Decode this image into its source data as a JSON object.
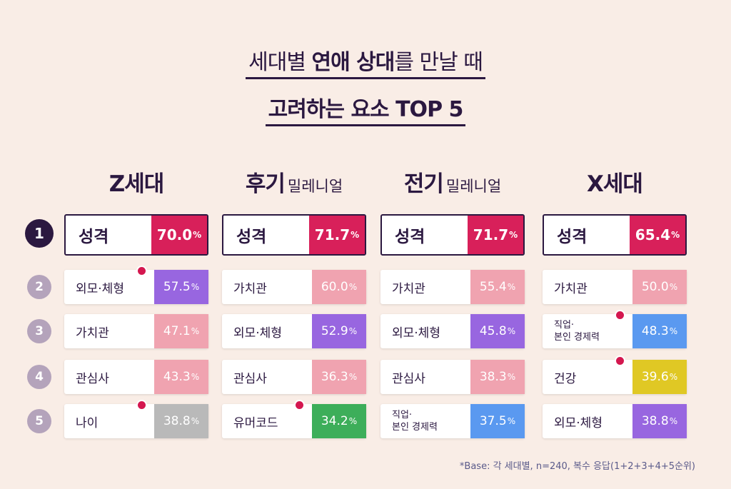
{
  "title": {
    "line1_a": "세대별 ",
    "line1_b": "연애 상대",
    "line1_c": "를 만날 때",
    "line2": "고려하는 요소 TOP 5"
  },
  "columns": [
    {
      "main": "Z세대",
      "sub": ""
    },
    {
      "main": "후기",
      "sub": "밀레니얼"
    },
    {
      "main": "전기",
      "sub": "밀레니얼"
    },
    {
      "main": "X세대",
      "sub": ""
    }
  ],
  "ranks": [
    "1",
    "2",
    "3",
    "4",
    "5"
  ],
  "pct_unit": "%",
  "colors": {
    "crimson": "#d8205a",
    "pink": "#f0a3b0",
    "purple": "#9866e0",
    "gray": "#b9b9b9",
    "green": "#3dae5a",
    "blue": "#5a99f0",
    "yellow": "#e0c824",
    "dot": "#d4174f",
    "navy": "#2b1840"
  },
  "grid": [
    [
      {
        "label": "성격",
        "value": "70.0",
        "color": "crimson"
      },
      {
        "label": "외모·체형",
        "value": "57.5",
        "color": "purple",
        "dot": true
      },
      {
        "label": "가치관",
        "value": "47.1",
        "color": "pink"
      },
      {
        "label": "관심사",
        "value": "43.3",
        "color": "pink"
      },
      {
        "label": "나이",
        "value": "38.8",
        "color": "gray",
        "dot": true
      }
    ],
    [
      {
        "label": "성격",
        "value": "71.7",
        "color": "crimson"
      },
      {
        "label": "가치관",
        "value": "60.0",
        "color": "pink"
      },
      {
        "label": "외모·체형",
        "value": "52.9",
        "color": "purple"
      },
      {
        "label": "관심사",
        "value": "36.3",
        "color": "pink"
      },
      {
        "label": "유머코드",
        "value": "34.2",
        "color": "green",
        "dot": true
      }
    ],
    [
      {
        "label": "성격",
        "value": "71.7",
        "color": "crimson"
      },
      {
        "label": "가치관",
        "value": "55.4",
        "color": "pink"
      },
      {
        "label": "외모·체형",
        "value": "45.8",
        "color": "purple"
      },
      {
        "label": "관심사",
        "value": "38.3",
        "color": "pink"
      },
      {
        "label": "직업·",
        "label2": "본인 경제력",
        "value": "37.5",
        "color": "blue"
      }
    ],
    [
      {
        "label": "성격",
        "value": "65.4",
        "color": "crimson"
      },
      {
        "label": "가치관",
        "value": "50.0",
        "color": "pink"
      },
      {
        "label": "직업·",
        "label2": "본인 경제력",
        "value": "48.3",
        "color": "blue",
        "dot": true
      },
      {
        "label": "건강",
        "value": "39.6",
        "color": "yellow",
        "dot": true
      },
      {
        "label": "외모·체형",
        "value": "38.8",
        "color": "purple"
      }
    ]
  ],
  "footnote": "*Base: 각 세대별, n=240, 복수 응답(1+2+3+4+5순위)"
}
